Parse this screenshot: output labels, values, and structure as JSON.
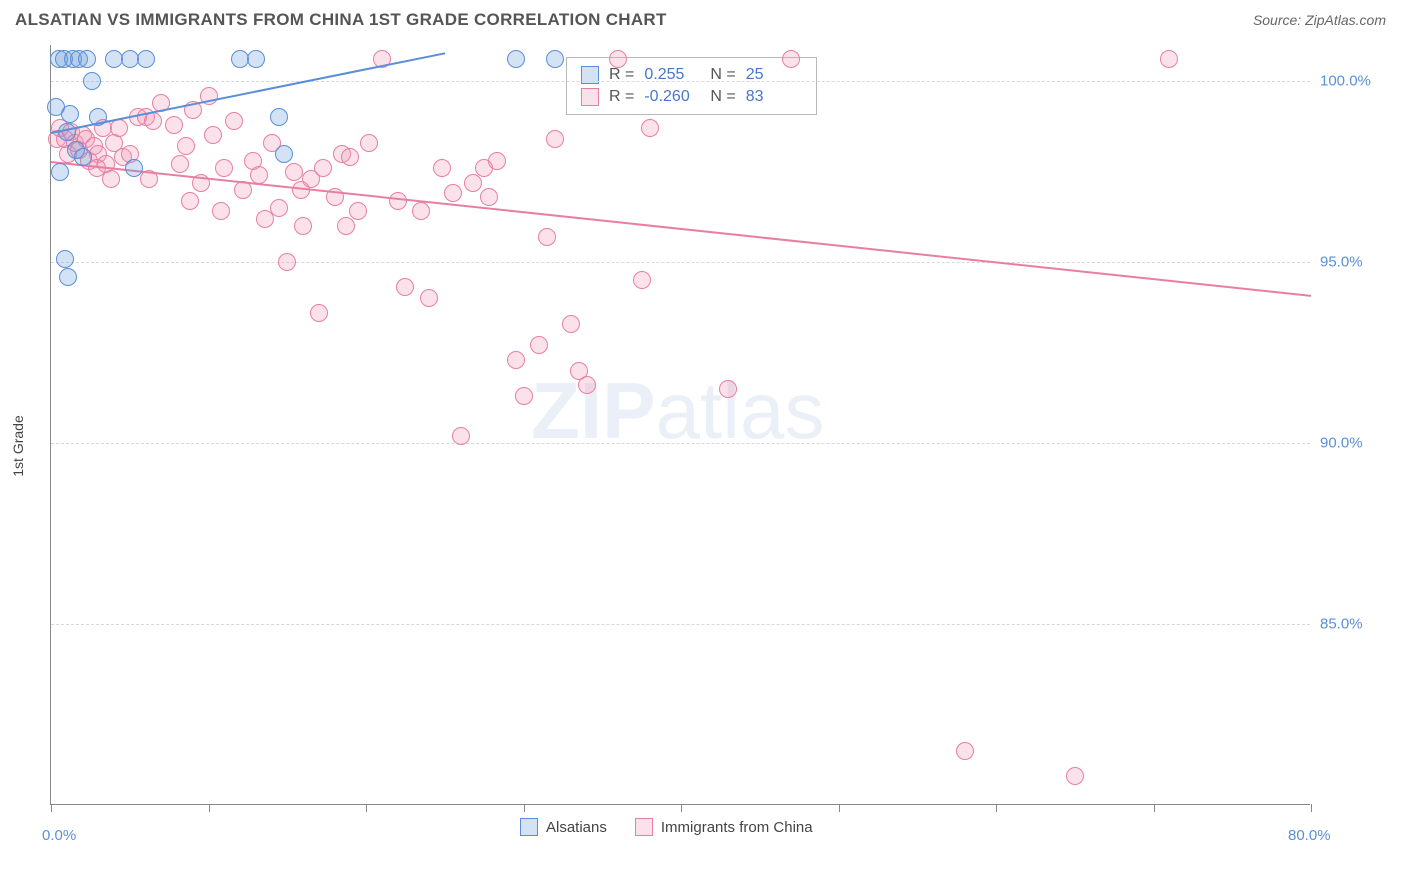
{
  "title": "ALSATIAN VS IMMIGRANTS FROM CHINA 1ST GRADE CORRELATION CHART",
  "source_label": "Source: ZipAtlas.com",
  "y_axis_title": "1st Grade",
  "watermark": {
    "part1": "ZIP",
    "part2": "atlas"
  },
  "chart": {
    "type": "scatter",
    "x_min": 0.0,
    "x_max": 80.0,
    "y_min": 80.0,
    "y_max": 101.0,
    "x_tick_label_min": "0.0%",
    "x_tick_label_max": "80.0%",
    "x_ticks_at": [
      0,
      10,
      20,
      30,
      40,
      50,
      60,
      70,
      80
    ],
    "y_gridlines": [
      85.0,
      90.0,
      95.0,
      100.0
    ],
    "y_tick_labels": [
      "85.0%",
      "90.0%",
      "95.0%",
      "100.0%"
    ],
    "grid_color": "#d8d8d8",
    "axis_label_color": "#5b8fd6",
    "background_color": "#ffffff",
    "marker_radius": 9,
    "marker_stroke_width": 1.2,
    "marker_fill_opacity": 0.25,
    "trend_line_width": 2.2
  },
  "series": {
    "blue": {
      "label": "Alsatians",
      "color_stroke": "#5a8fd8",
      "color_fill": "rgba(110,160,220,0.30)",
      "R": "0.255",
      "N": "25",
      "trend": {
        "x1": 0.0,
        "y1": 98.6,
        "x2": 25.0,
        "y2": 100.8
      },
      "points": [
        [
          0.3,
          99.3
        ],
        [
          0.5,
          100.6
        ],
        [
          0.8,
          100.6
        ],
        [
          1.0,
          98.6
        ],
        [
          1.2,
          99.1
        ],
        [
          1.4,
          100.6
        ],
        [
          1.6,
          98.1
        ],
        [
          1.8,
          100.6
        ],
        [
          2.0,
          97.9
        ],
        [
          2.3,
          100.6
        ],
        [
          2.6,
          100.0
        ],
        [
          3.0,
          99.0
        ],
        [
          0.6,
          97.5
        ],
        [
          4.0,
          100.6
        ],
        [
          5.0,
          100.6
        ],
        [
          5.3,
          97.6
        ],
        [
          6.0,
          100.6
        ],
        [
          0.9,
          95.1
        ],
        [
          1.1,
          94.6
        ],
        [
          12.0,
          100.6
        ],
        [
          13.0,
          100.6
        ],
        [
          14.5,
          99.0
        ],
        [
          14.8,
          98.0
        ],
        [
          29.5,
          100.6
        ],
        [
          32.0,
          100.6
        ]
      ]
    },
    "pink": {
      "label": "Immigrants from China",
      "color_stroke": "#e87fa3",
      "color_fill": "rgba(240,150,180,0.28)",
      "R": "-0.260",
      "N": "83",
      "trend": {
        "x1": 0.0,
        "y1": 97.8,
        "x2": 80.0,
        "y2": 94.1
      },
      "points": [
        [
          0.4,
          98.4
        ],
        [
          0.6,
          98.7
        ],
        [
          0.9,
          98.4
        ],
        [
          1.1,
          98.0
        ],
        [
          1.3,
          98.6
        ],
        [
          1.5,
          98.3
        ],
        [
          1.8,
          98.1
        ],
        [
          2.0,
          98.5
        ],
        [
          2.2,
          98.4
        ],
        [
          2.4,
          97.8
        ],
        [
          2.7,
          98.2
        ],
        [
          3.0,
          98.0
        ],
        [
          3.3,
          98.7
        ],
        [
          3.5,
          97.7
        ],
        [
          4.0,
          98.3
        ],
        [
          4.3,
          98.7
        ],
        [
          4.6,
          97.9
        ],
        [
          5.0,
          98.0
        ],
        [
          5.5,
          99.0
        ],
        [
          6.0,
          99.0
        ],
        [
          6.5,
          98.9
        ],
        [
          7.0,
          99.4
        ],
        [
          7.8,
          98.8
        ],
        [
          8.2,
          97.7
        ],
        [
          8.6,
          98.2
        ],
        [
          9.0,
          99.2
        ],
        [
          9.5,
          97.2
        ],
        [
          10.0,
          99.6
        ],
        [
          10.3,
          98.5
        ],
        [
          11.0,
          97.6
        ],
        [
          11.6,
          98.9
        ],
        [
          12.2,
          97.0
        ],
        [
          12.8,
          97.8
        ],
        [
          13.2,
          97.4
        ],
        [
          14.0,
          98.3
        ],
        [
          14.5,
          96.5
        ],
        [
          15.0,
          95.0
        ],
        [
          15.4,
          97.5
        ],
        [
          15.9,
          97.0
        ],
        [
          16.5,
          97.3
        ],
        [
          17.0,
          93.6
        ],
        [
          17.3,
          97.6
        ],
        [
          18.0,
          96.8
        ],
        [
          18.5,
          98.0
        ],
        [
          19.0,
          97.9
        ],
        [
          19.5,
          96.4
        ],
        [
          20.2,
          98.3
        ],
        [
          21.0,
          100.6
        ],
        [
          22.0,
          96.7
        ],
        [
          22.5,
          94.3
        ],
        [
          23.5,
          96.4
        ],
        [
          24.0,
          94.0
        ],
        [
          24.8,
          97.6
        ],
        [
          25.5,
          96.9
        ],
        [
          26.0,
          90.2
        ],
        [
          26.8,
          97.2
        ],
        [
          27.5,
          97.6
        ],
        [
          27.8,
          96.8
        ],
        [
          28.3,
          97.8
        ],
        [
          29.5,
          92.3
        ],
        [
          30.0,
          91.3
        ],
        [
          31.0,
          92.7
        ],
        [
          31.5,
          95.7
        ],
        [
          32.0,
          98.4
        ],
        [
          33.0,
          93.3
        ],
        [
          33.5,
          92.0
        ],
        [
          34.0,
          91.6
        ],
        [
          37.5,
          94.5
        ],
        [
          38.0,
          98.7
        ],
        [
          43.0,
          91.5
        ],
        [
          47.0,
          100.6
        ],
        [
          71.0,
          100.6
        ],
        [
          65.0,
          80.8
        ],
        [
          58.0,
          81.5
        ],
        [
          36.0,
          100.6
        ],
        [
          2.9,
          97.6
        ],
        [
          3.8,
          97.3
        ],
        [
          6.2,
          97.3
        ],
        [
          8.8,
          96.7
        ],
        [
          10.8,
          96.4
        ],
        [
          13.6,
          96.2
        ],
        [
          16.0,
          96.0
        ],
        [
          18.7,
          96.0
        ]
      ]
    }
  },
  "stats_box": {
    "rows": [
      {
        "swatch": "blue",
        "R_label": "R =",
        "R_val": "0.255",
        "N_label": "N =",
        "N_val": "25"
      },
      {
        "swatch": "pink",
        "R_label": "R =",
        "R_val": "-0.260",
        "N_label": "N =",
        "N_val": "83"
      }
    ]
  },
  "bottom_legend": {
    "items": [
      {
        "swatch": "blue",
        "label": "Alsatians"
      },
      {
        "swatch": "pink",
        "label": "Immigrants from China"
      }
    ]
  }
}
